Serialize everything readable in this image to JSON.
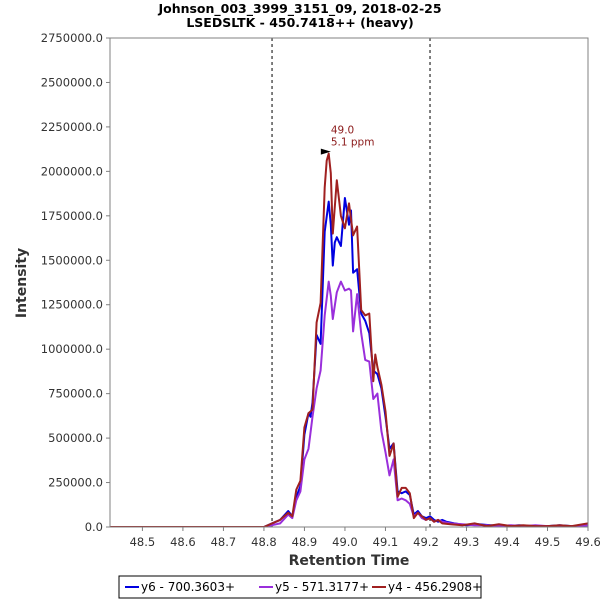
{
  "chart_data": {
    "type": "line",
    "title": "Johnson_003_3999_3151_09, 2018-02-25",
    "subtitle": "LSEDSLTK - 450.7418++ (heavy)",
    "xlabel": "Retention Time",
    "ylabel": "Intensity",
    "xlim": [
      48.42,
      49.6
    ],
    "ylim": [
      0,
      2750000
    ],
    "x_ticks": [
      "48.5",
      "48.6",
      "48.7",
      "48.8",
      "48.9",
      "49.0",
      "49.1",
      "49.2",
      "49.3",
      "49.4",
      "49.5",
      "49.6"
    ],
    "y_ticks": [
      "0.0",
      "250000.0",
      "500000.0",
      "750000.0",
      "1000000.0",
      "1250000.0",
      "1500000.0",
      "1750000.0",
      "2000000.0",
      "2250000.0",
      "2500000.0",
      "2750000.0"
    ],
    "integration_bounds": [
      48.82,
      49.21
    ],
    "peak_annotation": {
      "x": 48.98,
      "y": 2100000,
      "label_rt": "49.0",
      "label_ppm": "5.1 ppm"
    },
    "legend_position": "bottom",
    "series": [
      {
        "name": "y6 - 700.3603+",
        "color": "#0000e0",
        "x": [
          48.42,
          48.8,
          48.82,
          48.84,
          48.86,
          48.87,
          48.88,
          48.89,
          48.9,
          48.91,
          48.915,
          48.92,
          48.93,
          48.94,
          48.95,
          48.96,
          48.965,
          48.97,
          48.975,
          48.98,
          48.99,
          49.0,
          49.01,
          49.015,
          49.02,
          49.03,
          49.04,
          49.05,
          49.06,
          49.07,
          49.08,
          49.09,
          49.1,
          49.11,
          49.12,
          49.13,
          49.14,
          49.15,
          49.16,
          49.17,
          49.18,
          49.19,
          49.2,
          49.21,
          49.22,
          49.23,
          49.24,
          49.25,
          49.27,
          49.3,
          49.33,
          49.36,
          49.4,
          49.43,
          49.46,
          49.5,
          49.53,
          49.56,
          49.6
        ],
        "values": [
          0,
          0,
          20000,
          40000,
          90000,
          60000,
          170000,
          230000,
          520000,
          640000,
          620000,
          700000,
          1080000,
          1030000,
          1660000,
          1830000,
          1700000,
          1470000,
          1600000,
          1630000,
          1580000,
          1850000,
          1700000,
          1780000,
          1430000,
          1450000,
          1200000,
          1160000,
          1090000,
          880000,
          860000,
          780000,
          620000,
          440000,
          470000,
          200000,
          190000,
          200000,
          180000,
          70000,
          90000,
          60000,
          50000,
          60000,
          40000,
          30000,
          40000,
          30000,
          20000,
          10000,
          15000,
          10000,
          5000,
          10000,
          5000,
          5000,
          10000,
          5000,
          10000
        ]
      },
      {
        "name": "y5 - 571.3177+",
        "color": "#9a2fdb",
        "x": [
          48.42,
          48.8,
          48.82,
          48.84,
          48.86,
          48.87,
          48.88,
          48.89,
          48.9,
          48.91,
          48.92,
          48.93,
          48.94,
          48.95,
          48.96,
          48.965,
          48.97,
          48.98,
          48.99,
          49.0,
          49.01,
          49.015,
          49.02,
          49.03,
          49.04,
          49.05,
          49.06,
          49.07,
          49.08,
          49.09,
          49.1,
          49.11,
          49.12,
          49.13,
          49.14,
          49.15,
          49.16,
          49.17,
          49.18,
          49.19,
          49.2,
          49.21,
          49.22,
          49.23,
          49.24,
          49.26,
          49.29,
          49.32,
          49.35,
          49.38,
          49.41,
          49.44,
          49.47,
          49.5,
          49.53,
          49.56,
          49.6
        ],
        "values": [
          0,
          0,
          10000,
          20000,
          70000,
          50000,
          150000,
          200000,
          380000,
          440000,
          620000,
          780000,
          880000,
          1190000,
          1380000,
          1300000,
          1170000,
          1320000,
          1380000,
          1330000,
          1340000,
          1330000,
          1100000,
          1310000,
          1090000,
          940000,
          930000,
          720000,
          750000,
          540000,
          420000,
          290000,
          380000,
          150000,
          160000,
          150000,
          130000,
          60000,
          80000,
          50000,
          40000,
          50000,
          30000,
          40000,
          30000,
          20000,
          15000,
          10000,
          10000,
          5000,
          10000,
          5000,
          10000,
          5000,
          5000,
          5000,
          10000
        ]
      },
      {
        "name": "y4 - 456.2908+",
        "color": "#a02020",
        "x": [
          48.42,
          48.8,
          48.82,
          48.84,
          48.86,
          48.87,
          48.88,
          48.89,
          48.9,
          48.91,
          48.92,
          48.93,
          48.94,
          48.95,
          48.955,
          48.96,
          48.965,
          48.97,
          48.98,
          48.99,
          49.0,
          49.01,
          49.02,
          49.03,
          49.04,
          49.05,
          49.06,
          49.07,
          49.075,
          49.08,
          49.09,
          49.1,
          49.11,
          49.12,
          49.13,
          49.14,
          49.15,
          49.16,
          49.17,
          49.18,
          49.19,
          49.2,
          49.21,
          49.22,
          49.23,
          49.24,
          49.26,
          49.29,
          49.32,
          49.35,
          49.38,
          49.41,
          49.44,
          49.47,
          49.5,
          49.53,
          49.56,
          49.6
        ],
        "values": [
          0,
          0,
          20000,
          40000,
          80000,
          60000,
          210000,
          260000,
          560000,
          640000,
          660000,
          1150000,
          1260000,
          1910000,
          2060000,
          2100000,
          1990000,
          1650000,
          1950000,
          1750000,
          1680000,
          1820000,
          1640000,
          1690000,
          1220000,
          1190000,
          1200000,
          820000,
          970000,
          900000,
          800000,
          650000,
          400000,
          470000,
          170000,
          220000,
          220000,
          190000,
          50000,
          80000,
          60000,
          40000,
          50000,
          30000,
          40000,
          20000,
          15000,
          10000,
          20000,
          5000,
          15000,
          5000,
          10000,
          5000,
          5000,
          10000,
          5000,
          20000
        ]
      }
    ]
  }
}
